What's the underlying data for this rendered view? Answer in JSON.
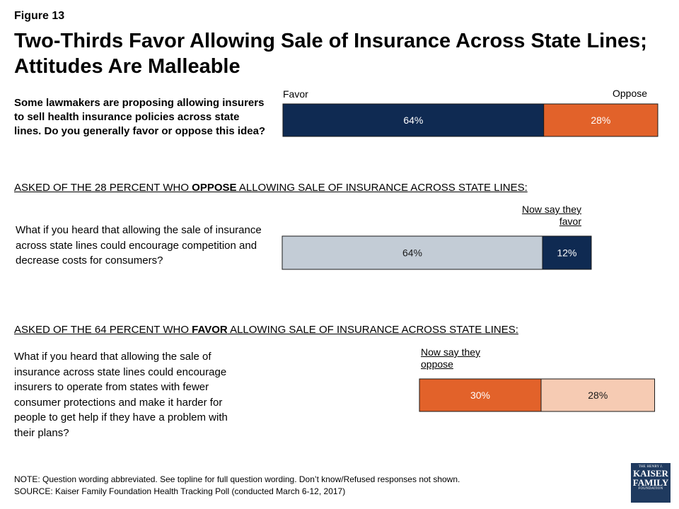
{
  "figure_number": "Figure 13",
  "title_line1": "Two-Thirds Favor Allowing Sale of Insurance Across State Lines;",
  "title_line2": "Attitudes Are Malleable",
  "question1": "Some lawmakers are proposing allowing insurers to sell health insurance policies across state lines. Do you generally favor or oppose this idea?",
  "section2": {
    "prefix": "ASKED OF THE 28 PERCENT WHO ",
    "emph": "OPPOSE",
    "suffix": " ALLOWING SALE OF INSURANCE ACROSS STATE LINES:"
  },
  "question2": "What if you heard that allowing the sale of insurance across state lines could encourage competition and decrease costs for consumers?",
  "section3": {
    "prefix": "ASKED OF THE 64 PERCENT WHO ",
    "emph": "FAVOR",
    "suffix": " ALLOWING SALE OF INSURANCE ACROSS STATE LINES:"
  },
  "question3": "What if you heard that allowing the sale of insurance across state lines could encourage insurers to operate from states with fewer consumer protections and make it harder for people to get help if they have a problem with their plans?",
  "labels": {
    "favor": "Favor",
    "oppose": "Oppose",
    "now_favor_1": "Now say they",
    "now_favor_2": "favor",
    "now_oppose_1": "Now say they",
    "now_oppose_2": "oppose"
  },
  "note_line1": "NOTE: Question wording abbreviated. See topline for full question wording. Don’t know/Refused responses not shown.",
  "note_line2": "SOURCE: Kaiser Family Foundation Health Tracking Poll (conducted March 6-12, 2017)",
  "logo": {
    "line1": "THE HENRY J.",
    "line2": "KAISER",
    "line3": "FAMILY",
    "line4": "FOUNDATION"
  },
  "colors": {
    "navy": "#0f2a52",
    "orange": "#e2622a",
    "gray": "#c3ccd6",
    "peach": "#f6cbb3",
    "logo_blue": "#1f3a5f"
  },
  "chart_data": [
    {
      "type": "bar",
      "orientation": "horizontal-stacked",
      "segments": [
        {
          "name": "Favor",
          "value": 64,
          "label": "64%",
          "color": "#0f2a52"
        },
        {
          "name": "Oppose",
          "value": 28,
          "label": "28%",
          "color": "#e2622a"
        }
      ]
    },
    {
      "type": "bar",
      "orientation": "horizontal-stacked",
      "segments": [
        {
          "name": "",
          "value": 64,
          "label": "64%",
          "color": "#c3ccd6"
        },
        {
          "name": "Now say they favor",
          "value": 12,
          "label": "12%",
          "color": "#0f2a52"
        }
      ]
    },
    {
      "type": "bar",
      "orientation": "horizontal-stacked",
      "segments": [
        {
          "name": "Now say they oppose",
          "value": 30,
          "label": "30%",
          "color": "#e2622a"
        },
        {
          "name": "",
          "value": 28,
          "label": "28%",
          "color": "#f6cbb3"
        }
      ]
    }
  ]
}
